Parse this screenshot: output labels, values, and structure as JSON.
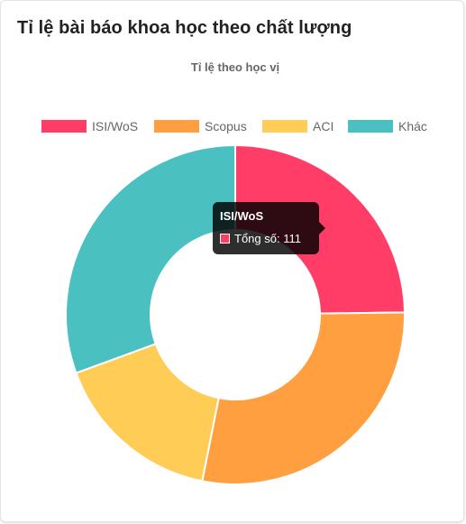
{
  "card": {
    "title": "Tỉ lệ bài báo khoa học theo chất lượng"
  },
  "chart_data": {
    "type": "doughnut",
    "title": "Tỉ lệ theo học vị",
    "legend_position": "top",
    "categories": [
      "ISI/WoS",
      "Scopus",
      "ACI",
      "Khác"
    ],
    "values": [
      111,
      127,
      73,
      137
    ],
    "colors": [
      "#ff3d67",
      "#ff9f40",
      "#ffcd56",
      "#4bc0c0"
    ],
    "tooltip": {
      "title": "ISI/WoS",
      "label": "Tổng số: 111"
    }
  }
}
